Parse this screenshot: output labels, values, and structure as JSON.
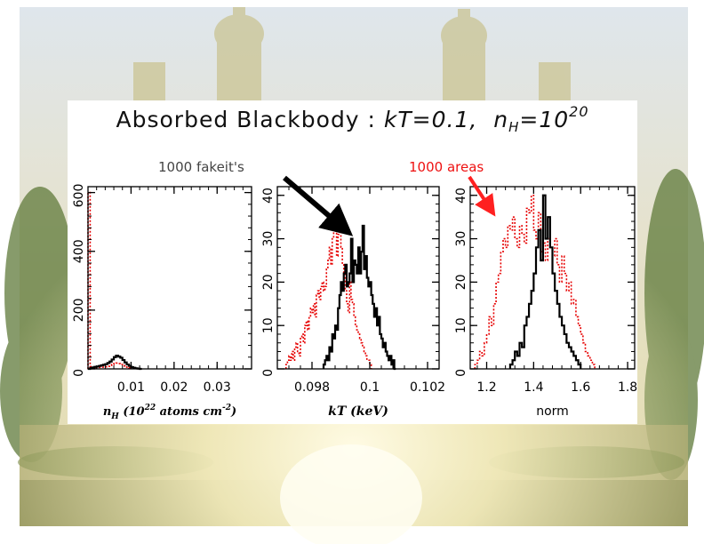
{
  "title": {
    "main": "Absorbed Blackbody : ",
    "kt": "kT=0.1,",
    "nh_symbol": "n",
    "nh_sub": "H",
    "nh_eq": "=10",
    "nh_exp": "20"
  },
  "annotations": {
    "black": "1000 fakeit's",
    "red": "1000 areas"
  },
  "colors": {
    "black_series": "#000000",
    "red_series": "#e60000",
    "arrow_black": "#000000",
    "arrow_red": "#ff2020"
  },
  "chart_data": [
    {
      "type": "histogram",
      "xlabel": {
        "sym": "n",
        "sub": "H",
        "unit_open": " (10",
        "unit_exp": "22",
        "unit_mid": " atoms cm",
        "unit_exp2": "-2",
        "unit_close": ")"
      },
      "xlim": [
        0,
        0.038
      ],
      "ylim": [
        0,
        620
      ],
      "xticks": [
        0.01,
        0.02,
        0.03
      ],
      "xtick_labels": [
        "0.01",
        "0.02",
        "0.03"
      ],
      "yticks": [
        0,
        200,
        400,
        600
      ],
      "ytick_labels": [
        "0",
        "200",
        "400",
        "600"
      ],
      "series": [
        {
          "x_start": 0,
          "bin_width": 0.0005,
          "counts": [
            0,
            3,
            5,
            7,
            8,
            10,
            12,
            14,
            16,
            20,
            25,
            32,
            40,
            45,
            42,
            38,
            30,
            22,
            15,
            10,
            6,
            4,
            2,
            1,
            0
          ]
        },
        {
          "x_start": 0,
          "bin_width": 0.0005,
          "counts": [
            600,
            8,
            5,
            4,
            4,
            5,
            6,
            6,
            7,
            9,
            12,
            15,
            18,
            20,
            18,
            15,
            12,
            9,
            6,
            4,
            3,
            2,
            1,
            0
          ]
        }
      ]
    },
    {
      "type": "histogram",
      "xlabel": {
        "text": "kT (keV)"
      },
      "xlim": [
        0.0968,
        0.1024
      ],
      "ylim": [
        0,
        42
      ],
      "xticks": [
        0.098,
        0.1,
        0.102
      ],
      "xtick_labels": [
        "0.098",
        "0.1",
        "0.102"
      ],
      "yticks": [
        0,
        10,
        20,
        30,
        40
      ],
      "ytick_labels": [
        "0",
        "10",
        "20",
        "30",
        "40"
      ],
      "series": [
        {
          "x_start": 0.0984,
          "bin_width": 5e-05,
          "counts": [
            1,
            2,
            3,
            2,
            5,
            4,
            8,
            7,
            10,
            9,
            14,
            17,
            20,
            18,
            22,
            24,
            19,
            20,
            22,
            30,
            20,
            25,
            24,
            22,
            28,
            22,
            27,
            33,
            23,
            26,
            21,
            19,
            20,
            17,
            15,
            12,
            14,
            10,
            12,
            8,
            7,
            5,
            6,
            4,
            3,
            2,
            3,
            1,
            2,
            0
          ]
        },
        {
          "x_start": 0.0971,
          "bin_width": 5e-05,
          "counts": [
            1,
            2,
            3,
            2,
            4,
            2,
            5,
            6,
            4,
            3,
            7,
            8,
            6,
            10,
            11,
            9,
            12,
            14,
            13,
            15,
            12,
            17,
            18,
            16,
            19,
            20,
            18,
            19,
            23,
            25,
            28,
            24,
            30,
            32,
            35,
            26,
            31,
            33,
            28,
            24,
            22,
            18,
            15,
            13,
            20,
            16,
            15,
            12,
            10,
            9,
            8,
            7,
            6,
            5,
            4,
            3,
            2,
            2,
            1
          ]
        }
      ]
    },
    {
      "type": "histogram",
      "xlabel": {
        "text": "norm"
      },
      "xlim": [
        1.13,
        1.83
      ],
      "ylim": [
        0,
        42
      ],
      "xticks": [
        1.2,
        1.4,
        1.6,
        1.8
      ],
      "xtick_labels": [
        "1.2",
        "1.4",
        "1.6",
        "1.8"
      ],
      "yticks": [
        0,
        10,
        20,
        30,
        40
      ],
      "ytick_labels": [
        "0",
        "10",
        "20",
        "30",
        "40"
      ],
      "series": [
        {
          "x_start": 1.3,
          "bin_width": 0.01,
          "counts": [
            1,
            2,
            4,
            3,
            6,
            5,
            10,
            12,
            15,
            18,
            22,
            28,
            32,
            25,
            40,
            30,
            35,
            28,
            22,
            18,
            15,
            12,
            10,
            8,
            6,
            5,
            4,
            3,
            2,
            1
          ]
        },
        {
          "x_start": 1.15,
          "bin_width": 0.01,
          "counts": [
            1,
            2,
            4,
            3,
            6,
            8,
            12,
            10,
            15,
            20,
            22,
            27,
            30,
            28,
            33,
            32,
            35,
            30,
            28,
            33,
            31,
            29,
            37,
            36,
            40,
            32,
            30,
            36,
            27,
            29,
            25,
            30,
            28,
            26,
            30,
            24,
            20,
            26,
            22,
            18,
            20,
            15,
            16,
            12,
            10,
            8,
            6,
            4,
            3,
            2,
            1
          ]
        }
      ]
    }
  ]
}
